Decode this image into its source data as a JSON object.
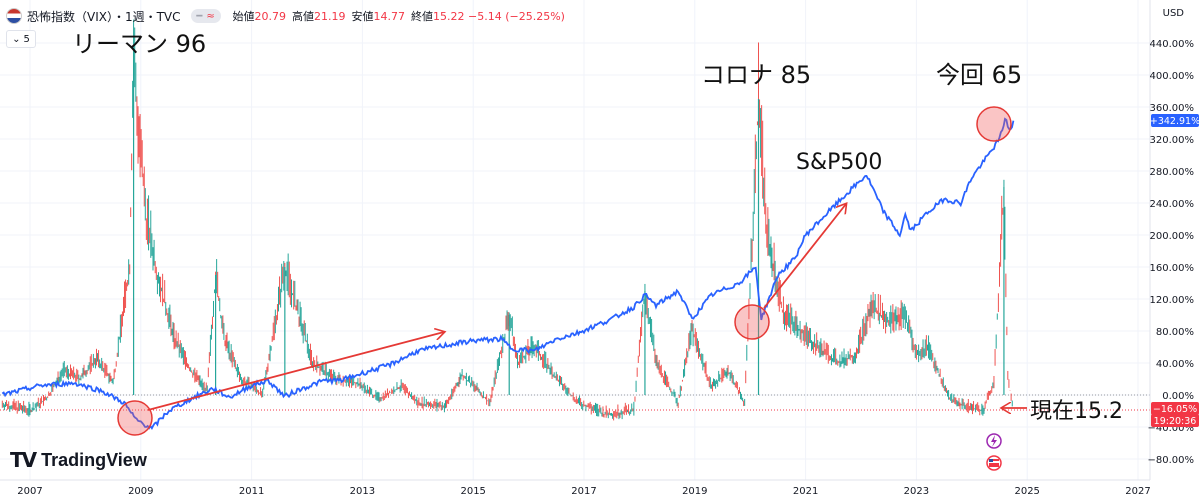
{
  "header": {
    "symbol": "恐怖指数（VIX）・1週・TVC",
    "open_label": "始値",
    "open_value": "20.79",
    "high_label": "高値",
    "high_value": "21.19",
    "low_label": "安値",
    "low_value": "14.77",
    "close_label": "終値",
    "close_value": "15.22 −5.14 (−25.25%)",
    "interval_toggle": "5"
  },
  "currency": "USD",
  "branding": {
    "logo_text": "TradingView"
  },
  "chart_data": {
    "type": "line",
    "x_axis": {
      "ticks": [
        "2007",
        "2009",
        "2011",
        "2013",
        "2015",
        "2017",
        "2019",
        "2021",
        "2023",
        "2025",
        "2027"
      ]
    },
    "y_axis": {
      "ticks": [
        "440.00%",
        "400.00%",
        "360.00%",
        "320.00%",
        "280.00%",
        "240.00%",
        "200.00%",
        "160.00%",
        "120.00%",
        "80.00%",
        "40.00%",
        "0.00%",
        "−40.00%",
        "−80.00%"
      ],
      "ylim": [
        -100,
        460
      ],
      "unit": "%"
    },
    "last_value_labels": [
      {
        "text": "+342.91%",
        "color": "#2962ff"
      },
      {
        "text": "−16.05%",
        "color": "#f23645"
      },
      {
        "text": "19:20:36",
        "color": "#f23645"
      }
    ],
    "series": [
      {
        "name": "S&P500",
        "color": "#2962ff",
        "points": [
          [
            2006.5,
            0
          ],
          [
            2007.2,
            12
          ],
          [
            2007.8,
            15
          ],
          [
            2008.3,
            5
          ],
          [
            2008.7,
            -10
          ],
          [
            2008.9,
            -30
          ],
          [
            2009.2,
            -42
          ],
          [
            2009.5,
            -20
          ],
          [
            2009.9,
            -5
          ],
          [
            2010.3,
            8
          ],
          [
            2010.6,
            -3
          ],
          [
            2011.0,
            12
          ],
          [
            2011.3,
            18
          ],
          [
            2011.6,
            -2
          ],
          [
            2011.8,
            5
          ],
          [
            2012.3,
            18
          ],
          [
            2012.6,
            18
          ],
          [
            2012.9,
            25
          ],
          [
            2013.5,
            38
          ],
          [
            2014.0,
            55
          ],
          [
            2014.5,
            62
          ],
          [
            2015.0,
            68
          ],
          [
            2015.5,
            70
          ],
          [
            2015.7,
            58
          ],
          [
            2016.1,
            55
          ],
          [
            2016.5,
            70
          ],
          [
            2016.9,
            78
          ],
          [
            2017.5,
            95
          ],
          [
            2017.9,
            110
          ],
          [
            2018.1,
            125
          ],
          [
            2018.3,
            112
          ],
          [
            2018.7,
            130
          ],
          [
            2018.95,
            95
          ],
          [
            2019.3,
            125
          ],
          [
            2019.8,
            140
          ],
          [
            2020.1,
            160
          ],
          [
            2020.2,
            95
          ],
          [
            2020.5,
            150
          ],
          [
            2020.8,
            170
          ],
          [
            2021.0,
            200
          ],
          [
            2021.5,
            235
          ],
          [
            2021.9,
            262
          ],
          [
            2022.1,
            275
          ],
          [
            2022.4,
            230
          ],
          [
            2022.7,
            200
          ],
          [
            2022.8,
            225
          ],
          [
            2022.9,
            205
          ],
          [
            2023.2,
            228
          ],
          [
            2023.5,
            245
          ],
          [
            2023.8,
            240
          ],
          [
            2024.0,
            272
          ],
          [
            2024.3,
            300
          ],
          [
            2024.5,
            320
          ],
          [
            2024.6,
            345
          ],
          [
            2024.7,
            330
          ],
          [
            2024.75,
            342.91
          ]
        ]
      },
      {
        "name": "VIX",
        "color": "#f23645",
        "points": [
          [
            2006.5,
            -12
          ],
          [
            2007.0,
            -20
          ],
          [
            2007.3,
            -5
          ],
          [
            2007.6,
            30
          ],
          [
            2007.9,
            20
          ],
          [
            2008.2,
            45
          ],
          [
            2008.5,
            15
          ],
          [
            2008.8,
            160
          ],
          [
            2008.87,
            430
          ],
          [
            2008.95,
            330
          ],
          [
            2009.1,
            220
          ],
          [
            2009.3,
            150
          ],
          [
            2009.6,
            70
          ],
          [
            2009.9,
            30
          ],
          [
            2010.2,
            5
          ],
          [
            2010.35,
            150
          ],
          [
            2010.5,
            70
          ],
          [
            2010.8,
            20
          ],
          [
            2011.2,
            0
          ],
          [
            2011.6,
            160
          ],
          [
            2011.8,
            110
          ],
          [
            2012.1,
            40
          ],
          [
            2012.5,
            20
          ],
          [
            2012.9,
            15
          ],
          [
            2013.3,
            -5
          ],
          [
            2013.7,
            10
          ],
          [
            2014.0,
            -10
          ],
          [
            2014.5,
            -15
          ],
          [
            2014.8,
            25
          ],
          [
            2015.3,
            -10
          ],
          [
            2015.65,
            100
          ],
          [
            2015.8,
            40
          ],
          [
            2016.1,
            60
          ],
          [
            2016.5,
            20
          ],
          [
            2016.9,
            -10
          ],
          [
            2017.4,
            -25
          ],
          [
            2017.9,
            -20
          ],
          [
            2018.1,
            130
          ],
          [
            2018.3,
            40
          ],
          [
            2018.7,
            -10
          ],
          [
            2018.95,
            80
          ],
          [
            2019.3,
            10
          ],
          [
            2019.6,
            30
          ],
          [
            2019.9,
            -10
          ],
          [
            2020.15,
            370
          ],
          [
            2020.3,
            200
          ],
          [
            2020.6,
            100
          ],
          [
            2020.9,
            80
          ],
          [
            2021.2,
            60
          ],
          [
            2021.6,
            40
          ],
          [
            2021.9,
            50
          ],
          [
            2022.2,
            110
          ],
          [
            2022.5,
            90
          ],
          [
            2022.8,
            100
          ],
          [
            2023.0,
            50
          ],
          [
            2023.2,
            60
          ],
          [
            2023.6,
            -5
          ],
          [
            2023.9,
            -15
          ],
          [
            2024.2,
            -20
          ],
          [
            2024.4,
            15
          ],
          [
            2024.58,
            260
          ],
          [
            2024.65,
            20
          ],
          [
            2024.75,
            -16.05
          ]
        ]
      }
    ],
    "annotations": [
      {
        "text": "リーマン 96"
      },
      {
        "text": "コロナ 85"
      },
      {
        "text": "今回 65"
      },
      {
        "text": "S&P500"
      },
      {
        "text": "現在15.2"
      }
    ]
  },
  "bottom_icons": [
    "lightning-icon",
    "flag-icon"
  ]
}
